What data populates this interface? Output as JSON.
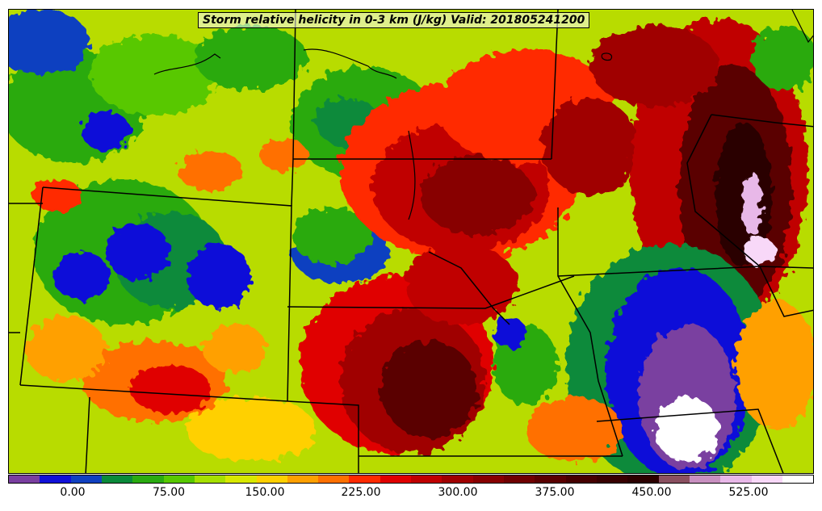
{
  "title": "Storm relative helicity in 0-3 km (J/kg) Valid: 201805241200",
  "colorbar": {
    "colors": [
      "#7a3fa0",
      "#1010d8",
      "#1040c0",
      "#0a8a3a",
      "#2aaa10",
      "#58c800",
      "#a6e000",
      "#d8e800",
      "#ffd000",
      "#ffa000",
      "#ff7000",
      "#ff2a00",
      "#e00000",
      "#c00000",
      "#a00000",
      "#880000",
      "#700000",
      "#5a0000",
      "#460000",
      "#380000",
      "#2c0000",
      "#8a5060",
      "#c890c0",
      "#e8b8e8",
      "#f8d8f8",
      "#ffffff"
    ],
    "ticks": [
      "0.00",
      "75.00",
      "150.00",
      "225.00",
      "300.00",
      "375.00",
      "450.00",
      "525.00"
    ]
  },
  "layers": {
    "helicity_field": "helicity-contours",
    "boundaries": "state-boundaries",
    "water": "lake-outlines"
  }
}
